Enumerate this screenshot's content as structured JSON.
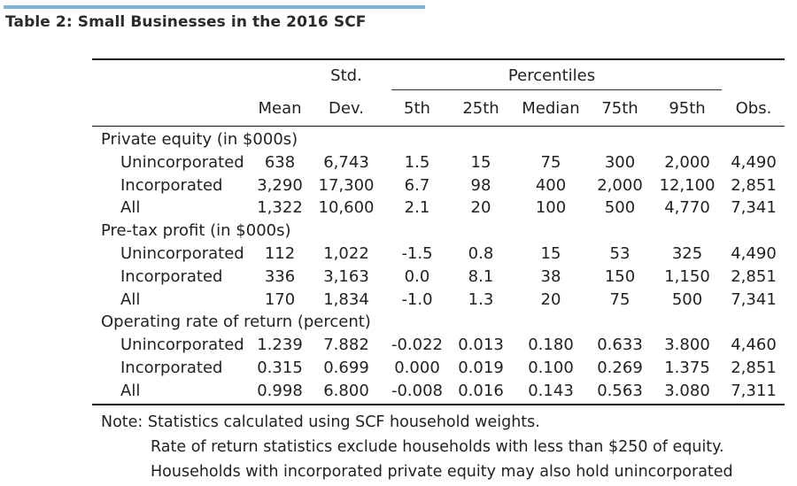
{
  "title": "Table 2: Small Businesses in the 2016 SCF",
  "header": {
    "std_top": "Std.",
    "percentiles": "Percentiles",
    "columns": [
      "Mean",
      "Dev.",
      "5th",
      "25th",
      "Median",
      "75th",
      "95th",
      "Obs."
    ]
  },
  "sections": [
    {
      "title": "Private equity (in $000s)",
      "rows": [
        {
          "label": "Unincorporated",
          "values": [
            "638",
            "6,743",
            "1.5",
            "15",
            "75",
            "300",
            "2,000",
            "4,490"
          ]
        },
        {
          "label": "Incorporated",
          "values": [
            "3,290",
            "17,300",
            "6.7",
            "98",
            "400",
            "2,000",
            "12,100",
            "2,851"
          ]
        },
        {
          "label": "All",
          "values": [
            "1,322",
            "10,600",
            "2.1",
            "20",
            "100",
            "500",
            "4,770",
            "7,341"
          ]
        }
      ]
    },
    {
      "title": "Pre-tax profit (in $000s)",
      "rows": [
        {
          "label": "Unincorporated",
          "values": [
            "112",
            "1,022",
            "-1.5",
            "0.8",
            "15",
            "53",
            "325",
            "4,490"
          ]
        },
        {
          "label": "Incorporated",
          "values": [
            "336",
            "3,163",
            "0.0",
            "8.1",
            "38",
            "150",
            "1,150",
            "2,851"
          ]
        },
        {
          "label": "All",
          "values": [
            "170",
            "1,834",
            "-1.0",
            "1.3",
            "20",
            "75",
            "500",
            "7,341"
          ]
        }
      ]
    },
    {
      "title": "Operating rate of return (percent)",
      "rows": [
        {
          "label": "Unincorporated",
          "values": [
            "1.239",
            "7.882",
            "-0.022",
            "0.013",
            "0.180",
            "0.633",
            "3.800",
            "4,460"
          ]
        },
        {
          "label": "Incorporated",
          "values": [
            "0.315",
            "0.699",
            "0.000",
            "0.019",
            "0.100",
            "0.269",
            "1.375",
            "2,851"
          ]
        },
        {
          "label": "All",
          "values": [
            "0.998",
            "6.800",
            "-0.008",
            "0.016",
            "0.143",
            "0.563",
            "3.080",
            "7,311"
          ]
        }
      ]
    }
  ],
  "notes": [
    "Note: Statistics calculated using SCF household weights.",
    "Rate of return statistics exclude households with less than $250 of equity.",
    "Households with incorporated private equity may also hold unincorporated"
  ]
}
